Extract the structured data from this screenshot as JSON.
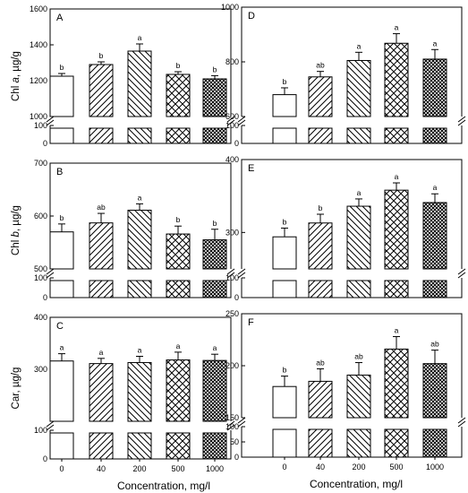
{
  "chart_data": {
    "type": "bar",
    "categories": [
      "0",
      "40",
      "200",
      "500",
      "1000"
    ],
    "xlabel": "Concentration, mg/l",
    "x_tick_labels": [
      "0",
      "40",
      "200",
      "500",
      "1000"
    ],
    "patterns": [
      "blank",
      "diagonal-up",
      "diagonal-down",
      "crosshatch",
      "dense-crosshatch"
    ],
    "panels": [
      {
        "letter": "A",
        "ylabel_main": "Chl ",
        "ylabel_italic": "a",
        "ylabel_unit": ", µg/g",
        "ylim": [
          1000,
          1600
        ],
        "yticks": [
          1000,
          1200,
          1400,
          1600
        ],
        "yticks_lower": [
          0,
          100
        ],
        "values": [
          1225,
          1290,
          1365,
          1235,
          1210
        ],
        "errors": [
          15,
          15,
          40,
          15,
          18
        ],
        "labels": [
          "b",
          "b",
          "a",
          "b",
          "b"
        ]
      },
      {
        "letter": "B",
        "ylabel_main": "Chl ",
        "ylabel_italic": "b",
        "ylabel_unit": ", µg/g",
        "ylim": [
          500,
          700
        ],
        "yticks": [
          500,
          600,
          700
        ],
        "yticks_lower": [
          0,
          100
        ],
        "values": [
          570,
          587,
          611,
          566,
          555
        ],
        "errors": [
          15,
          18,
          12,
          15,
          20
        ],
        "labels": [
          "b",
          "ab",
          "a",
          "b",
          "b"
        ]
      },
      {
        "letter": "C",
        "ylabel_main": "Car, µg/g",
        "ylabel_italic": "",
        "ylabel_unit": "",
        "ylim": [
          200,
          400
        ],
        "yticks": [
          300,
          400
        ],
        "yticks_lower": [
          0,
          100
        ],
        "values": [
          316,
          311,
          313,
          318,
          317
        ],
        "errors": [
          14,
          10,
          12,
          15,
          12
        ],
        "labels": [
          "a",
          "a",
          "a",
          "a",
          "a"
        ]
      },
      {
        "letter": "D",
        "ylabel_main": "",
        "ylabel_italic": "",
        "ylabel_unit": "",
        "ylim": [
          600,
          1000
        ],
        "yticks": [
          600,
          800,
          1000
        ],
        "yticks_lower": [
          0,
          100
        ],
        "values": [
          680,
          745,
          805,
          868,
          810
        ],
        "errors": [
          25,
          20,
          30,
          35,
          35
        ],
        "labels": [
          "b",
          "ab",
          "a",
          "a",
          "a"
        ]
      },
      {
        "letter": "E",
        "ylabel_main": "",
        "ylabel_italic": "",
        "ylabel_unit": "",
        "ylim": [
          250,
          400
        ],
        "yticks": [
          300,
          400
        ],
        "yticks_lower": [
          0,
          100
        ],
        "values": [
          294,
          313,
          336,
          358,
          341
        ],
        "errors": [
          12,
          12,
          10,
          10,
          12
        ],
        "labels": [
          "b",
          "b",
          "a",
          "a",
          "a"
        ]
      },
      {
        "letter": "F",
        "ylabel_main": "",
        "ylabel_italic": "",
        "ylabel_unit": "",
        "ylim": [
          150,
          250
        ],
        "yticks": [
          150,
          200,
          250
        ],
        "yticks_lower": [
          0,
          50,
          100
        ],
        "values": [
          180,
          185,
          191,
          216,
          202
        ],
        "errors": [
          10,
          12,
          12,
          12,
          13
        ],
        "labels": [
          "b",
          "ab",
          "ab",
          "a",
          "ab"
        ]
      }
    ]
  }
}
